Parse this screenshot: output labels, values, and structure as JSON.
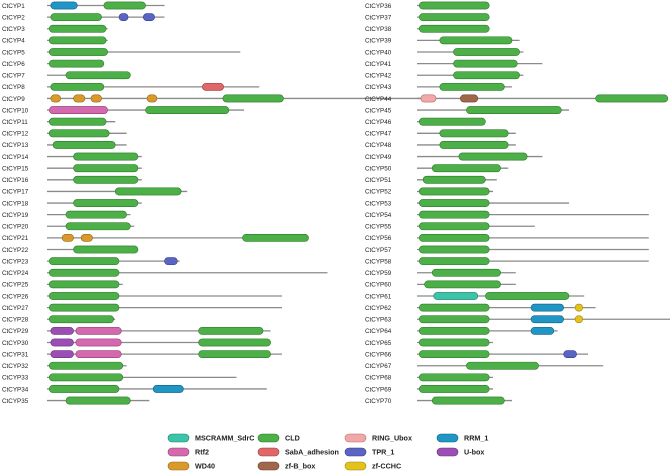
{
  "domain_colors": {
    "MSCRAMM_SdrC": {
      "fill": "#3bc4a7",
      "stroke": "#22806a"
    },
    "CLD": {
      "fill": "#4caf47",
      "stroke": "#2c7a2a"
    },
    "RING_Ubox": {
      "fill": "#f0a8a8",
      "stroke": "#b56a6a"
    },
    "RRM_1": {
      "fill": "#1f96c5",
      "stroke": "#12607f"
    },
    "Rtf2": {
      "fill": "#d469ad",
      "stroke": "#8f3f73"
    },
    "SabA_adhesion": {
      "fill": "#e06767",
      "stroke": "#9c3b3b"
    },
    "TPR_1": {
      "fill": "#5a64c2",
      "stroke": "#343c86"
    },
    "U-box": {
      "fill": "#9b4fb5",
      "stroke": "#663079"
    },
    "WD40": {
      "fill": "#d99a2b",
      "stroke": "#946716"
    },
    "zf-B_box": {
      "fill": "#a0674a",
      "stroke": "#6b412c"
    },
    "zf-CCHC": {
      "fill": "#e2c21b",
      "stroke": "#9a8410"
    }
  },
  "legend": [
    {
      "key": "MSCRAMM_SdrC",
      "label": "MSCRAMM_SdrC"
    },
    {
      "key": "CLD",
      "label": "CLD"
    },
    {
      "key": "RING_Ubox",
      "label": "RING_Ubox"
    },
    {
      "key": "RRM_1",
      "label": "RRM_1"
    },
    {
      "key": "Rtf2",
      "label": "Rtf2"
    },
    {
      "key": "SabA_adhesion",
      "label": "SabA_adhesion"
    },
    {
      "key": "TPR_1",
      "label": "TPR_1"
    },
    {
      "key": "U-box",
      "label": "U-box"
    },
    {
      "key": "WD40",
      "label": "WD40"
    },
    {
      "key": "zf-B_box",
      "label": "zf-B_box"
    },
    {
      "key": "zf-CCHC",
      "label": "zf-CCHC"
    }
  ],
  "chart_data": {
    "type": "protein_domain_architecture",
    "genes": [
      {
        "name": "CtCYP1",
        "length": 155,
        "domains": [
          {
            "type": "RRM_1",
            "start": 5,
            "end": 40
          },
          {
            "type": "CLD",
            "start": 75,
            "end": 130
          }
        ]
      },
      {
        "name": "CtCYP2",
        "length": 155,
        "domains": [
          {
            "type": "CLD",
            "start": 5,
            "end": 72
          },
          {
            "type": "TPR_1",
            "start": 95,
            "end": 107
          },
          {
            "type": "TPR_1",
            "start": 127,
            "end": 142
          }
        ]
      },
      {
        "name": "CtCYP3",
        "length": 80,
        "domains": [
          {
            "type": "CLD",
            "start": 3,
            "end": 78
          }
        ]
      },
      {
        "name": "CtCYP4",
        "length": 80,
        "domains": [
          {
            "type": "CLD",
            "start": 3,
            "end": 78
          }
        ]
      },
      {
        "name": "CtCYP5",
        "length": 255,
        "domains": [
          {
            "type": "CLD",
            "start": 3,
            "end": 80
          }
        ]
      },
      {
        "name": "CtCYP6",
        "length": 75,
        "domains": [
          {
            "type": "CLD",
            "start": 3,
            "end": 75
          }
        ]
      },
      {
        "name": "CtCYP7",
        "length": 110,
        "domains": [
          {
            "type": "CLD",
            "start": 25,
            "end": 110
          }
        ]
      },
      {
        "name": "CtCYP8",
        "length": 280,
        "domains": [
          {
            "type": "CLD",
            "start": 5,
            "end": 75
          },
          {
            "type": "SabA_adhesion",
            "start": 205,
            "end": 233
          }
        ]
      },
      {
        "name": "CtCYP9",
        "length": 495,
        "domains": [
          {
            "type": "WD40",
            "start": 5,
            "end": 18
          },
          {
            "type": "WD40",
            "start": 35,
            "end": 50
          },
          {
            "type": "WD40",
            "start": 58,
            "end": 72
          },
          {
            "type": "WD40",
            "start": 132,
            "end": 145
          },
          {
            "type": "CLD",
            "start": 232,
            "end": 312
          }
        ]
      },
      {
        "name": "CtCYP10",
        "length": 260,
        "domains": [
          {
            "type": "Rtf2",
            "start": 3,
            "end": 80
          },
          {
            "type": "CLD",
            "start": 130,
            "end": 240
          }
        ]
      },
      {
        "name": "CtCYP11",
        "length": 90,
        "domains": [
          {
            "type": "CLD",
            "start": 3,
            "end": 78
          }
        ]
      },
      {
        "name": "CtCYP12",
        "length": 105,
        "domains": [
          {
            "type": "CLD",
            "start": 3,
            "end": 82
          }
        ]
      },
      {
        "name": "CtCYP13",
        "length": 105,
        "domains": [
          {
            "type": "CLD",
            "start": 8,
            "end": 90
          }
        ]
      },
      {
        "name": "CtCYP14",
        "length": 125,
        "domains": [
          {
            "type": "CLD",
            "start": 35,
            "end": 120
          }
        ]
      },
      {
        "name": "CtCYP15",
        "length": 125,
        "domains": [
          {
            "type": "CLD",
            "start": 35,
            "end": 120
          }
        ]
      },
      {
        "name": "CtCYP16",
        "length": 125,
        "domains": [
          {
            "type": "CLD",
            "start": 35,
            "end": 120
          }
        ]
      },
      {
        "name": "CtCYP17",
        "length": 185,
        "domains": [
          {
            "type": "CLD",
            "start": 90,
            "end": 177
          }
        ]
      },
      {
        "name": "CtCYP18",
        "length": 125,
        "domains": [
          {
            "type": "CLD",
            "start": 35,
            "end": 120
          }
        ]
      },
      {
        "name": "CtCYP19",
        "length": 110,
        "domains": [
          {
            "type": "CLD",
            "start": 25,
            "end": 105
          }
        ]
      },
      {
        "name": "CtCYP20",
        "length": 115,
        "domains": [
          {
            "type": "CLD",
            "start": 25,
            "end": 110
          }
        ]
      },
      {
        "name": "CtCYP21",
        "length": 345,
        "domains": [
          {
            "type": "WD40",
            "start": 20,
            "end": 35
          },
          {
            "type": "WD40",
            "start": 45,
            "end": 60
          },
          {
            "type": "CLD",
            "start": 258,
            "end": 345
          }
        ]
      },
      {
        "name": "CtCYP22",
        "length": 120,
        "domains": [
          {
            "type": "CLD",
            "start": 35,
            "end": 120
          }
        ]
      },
      {
        "name": "CtCYP23",
        "length": 175,
        "domains": [
          {
            "type": "CLD",
            "start": 3,
            "end": 95
          },
          {
            "type": "TPR_1",
            "start": 155,
            "end": 172
          }
        ]
      },
      {
        "name": "CtCYP24",
        "length": 370,
        "domains": [
          {
            "type": "CLD",
            "start": 3,
            "end": 95
          }
        ]
      },
      {
        "name": "CtCYP25",
        "length": 100,
        "domains": [
          {
            "type": "CLD",
            "start": 3,
            "end": 95
          }
        ]
      },
      {
        "name": "CtCYP26",
        "length": 310,
        "domains": [
          {
            "type": "CLD",
            "start": 3,
            "end": 95
          }
        ]
      },
      {
        "name": "CtCYP27",
        "length": 310,
        "domains": [
          {
            "type": "CLD",
            "start": 3,
            "end": 95
          }
        ]
      },
      {
        "name": "CtCYP28",
        "length": 90,
        "domains": [
          {
            "type": "CLD",
            "start": 3,
            "end": 88
          }
        ]
      },
      {
        "name": "CtCYP29",
        "length": 295,
        "domains": [
          {
            "type": "U-box",
            "start": 5,
            "end": 35
          },
          {
            "type": "Rtf2",
            "start": 38,
            "end": 98
          },
          {
            "type": "CLD",
            "start": 200,
            "end": 285
          }
        ]
      },
      {
        "name": "CtCYP30",
        "length": 295,
        "domains": [
          {
            "type": "U-box",
            "start": 5,
            "end": 35
          },
          {
            "type": "Rtf2",
            "start": 38,
            "end": 98
          },
          {
            "type": "CLD",
            "start": 200,
            "end": 295
          }
        ]
      },
      {
        "name": "CtCYP31",
        "length": 310,
        "domains": [
          {
            "type": "U-box",
            "start": 5,
            "end": 35
          },
          {
            "type": "Rtf2",
            "start": 38,
            "end": 98
          },
          {
            "type": "CLD",
            "start": 200,
            "end": 295
          }
        ]
      },
      {
        "name": "CtCYP32",
        "length": 105,
        "domains": [
          {
            "type": "CLD",
            "start": 3,
            "end": 100
          }
        ]
      },
      {
        "name": "CtCYP33",
        "length": 250,
        "domains": [
          {
            "type": "CLD",
            "start": 3,
            "end": 100
          }
        ]
      },
      {
        "name": "CtCYP34",
        "length": 290,
        "domains": [
          {
            "type": "CLD",
            "start": 3,
            "end": 95
          },
          {
            "type": "RRM_1",
            "start": 140,
            "end": 180
          }
        ]
      },
      {
        "name": "CtCYP35",
        "length": 135,
        "domains": [
          {
            "type": "CLD",
            "start": 25,
            "end": 110
          }
        ]
      },
      {
        "name": "CtCYP36",
        "length": 95,
        "domains": [
          {
            "type": "CLD",
            "start": 3,
            "end": 95
          }
        ]
      },
      {
        "name": "CtCYP37",
        "length": 95,
        "domains": [
          {
            "type": "CLD",
            "start": 3,
            "end": 95
          }
        ]
      },
      {
        "name": "CtCYP38",
        "length": 95,
        "domains": [
          {
            "type": "CLD",
            "start": 3,
            "end": 95
          }
        ]
      },
      {
        "name": "CtCYP39",
        "length": 135,
        "domains": [
          {
            "type": "CLD",
            "start": 30,
            "end": 125
          }
        ]
      },
      {
        "name": "CtCYP40",
        "length": 140,
        "domains": [
          {
            "type": "CLD",
            "start": 48,
            "end": 135
          }
        ]
      },
      {
        "name": "CtCYP41",
        "length": 165,
        "domains": [
          {
            "type": "CLD",
            "start": 48,
            "end": 132
          }
        ]
      },
      {
        "name": "CtCYP42",
        "length": 140,
        "domains": [
          {
            "type": "CLD",
            "start": 48,
            "end": 135
          }
        ]
      },
      {
        "name": "CtCYP43",
        "length": 125,
        "domains": [
          {
            "type": "CLD",
            "start": 30,
            "end": 115
          }
        ]
      },
      {
        "name": "CtCYP44",
        "length": 330,
        "domains": [
          {
            "type": "RING_Ubox",
            "start": 5,
            "end": 25
          },
          {
            "type": "zf-B_box",
            "start": 57,
            "end": 80
          },
          {
            "type": "CLD",
            "start": 235,
            "end": 330
          }
        ]
      },
      {
        "name": "CtCYP45",
        "length": 200,
        "domains": [
          {
            "type": "CLD",
            "start": 65,
            "end": 190
          }
        ]
      },
      {
        "name": "CtCYP46",
        "length": 90,
        "domains": [
          {
            "type": "CLD",
            "start": 3,
            "end": 90
          }
        ]
      },
      {
        "name": "CtCYP47",
        "length": 130,
        "domains": [
          {
            "type": "CLD",
            "start": 30,
            "end": 120
          }
        ]
      },
      {
        "name": "CtCYP48",
        "length": 130,
        "domains": [
          {
            "type": "CLD",
            "start": 30,
            "end": 120
          }
        ]
      },
      {
        "name": "CtCYP49",
        "length": 165,
        "domains": [
          {
            "type": "CLD",
            "start": 55,
            "end": 145
          }
        ]
      },
      {
        "name": "CtCYP50",
        "length": 120,
        "domains": [
          {
            "type": "CLD",
            "start": 20,
            "end": 110
          }
        ]
      },
      {
        "name": "CtCYP51",
        "length": 105,
        "domains": [
          {
            "type": "CLD",
            "start": 8,
            "end": 90
          }
        ]
      },
      {
        "name": "CtCYP52",
        "length": 100,
        "domains": [
          {
            "type": "CLD",
            "start": 3,
            "end": 95
          }
        ]
      },
      {
        "name": "CtCYP53",
        "length": 200,
        "domains": [
          {
            "type": "CLD",
            "start": 3,
            "end": 95
          }
        ]
      },
      {
        "name": "CtCYP54",
        "length": 305,
        "domains": [
          {
            "type": "CLD",
            "start": 3,
            "end": 95
          }
        ]
      },
      {
        "name": "CtCYP55",
        "length": 155,
        "domains": [
          {
            "type": "CLD",
            "start": 3,
            "end": 95
          }
        ]
      },
      {
        "name": "CtCYP56",
        "length": 305,
        "domains": [
          {
            "type": "CLD",
            "start": 3,
            "end": 95
          }
        ]
      },
      {
        "name": "CtCYP57",
        "length": 305,
        "domains": [
          {
            "type": "CLD",
            "start": 3,
            "end": 95
          }
        ]
      },
      {
        "name": "CtCYP58",
        "length": 305,
        "domains": [
          {
            "type": "CLD",
            "start": 3,
            "end": 95
          }
        ]
      },
      {
        "name": "CtCYP59",
        "length": 130,
        "domains": [
          {
            "type": "CLD",
            "start": 20,
            "end": 110
          }
        ]
      },
      {
        "name": "CtCYP60",
        "length": 130,
        "domains": [
          {
            "type": "CLD",
            "start": 10,
            "end": 110
          }
        ]
      },
      {
        "name": "CtCYP61",
        "length": 220,
        "domains": [
          {
            "type": "MSCRAMM_SdrC",
            "start": 22,
            "end": 80
          },
          {
            "type": "CLD",
            "start": 90,
            "end": 200
          }
        ]
      },
      {
        "name": "CtCYP62",
        "length": 235,
        "domains": [
          {
            "type": "CLD",
            "start": 3,
            "end": 95
          },
          {
            "type": "RRM_1",
            "start": 150,
            "end": 193
          },
          {
            "type": "zf-CCHC",
            "start": 208,
            "end": 218
          }
        ]
      },
      {
        "name": "CtCYP63",
        "length": 370,
        "domains": [
          {
            "type": "CLD",
            "start": 3,
            "end": 95
          },
          {
            "type": "RRM_1",
            "start": 150,
            "end": 193
          },
          {
            "type": "zf-CCHC",
            "start": 208,
            "end": 218
          }
        ]
      },
      {
        "name": "CtCYP64",
        "length": 185,
        "domains": [
          {
            "type": "CLD",
            "start": 3,
            "end": 95
          },
          {
            "type": "RRM_1",
            "start": 150,
            "end": 180
          }
        ]
      },
      {
        "name": "CtCYP65",
        "length": 100,
        "domains": [
          {
            "type": "CLD",
            "start": 3,
            "end": 95
          }
        ]
      },
      {
        "name": "CtCYP66",
        "length": 225,
        "domains": [
          {
            "type": "CLD",
            "start": 3,
            "end": 95
          },
          {
            "type": "TPR_1",
            "start": 193,
            "end": 210
          }
        ]
      },
      {
        "name": "CtCYP67",
        "length": 245,
        "domains": [
          {
            "type": "CLD",
            "start": 65,
            "end": 160
          }
        ]
      },
      {
        "name": "CtCYP68",
        "length": 100,
        "domains": [
          {
            "type": "CLD",
            "start": 3,
            "end": 95
          }
        ]
      },
      {
        "name": "CtCYP69",
        "length": 100,
        "domains": [
          {
            "type": "CLD",
            "start": 3,
            "end": 95
          }
        ]
      },
      {
        "name": "CtCYP70",
        "length": 125,
        "domains": [
          {
            "type": "CLD",
            "start": 20,
            "end": 115
          }
        ]
      }
    ]
  }
}
